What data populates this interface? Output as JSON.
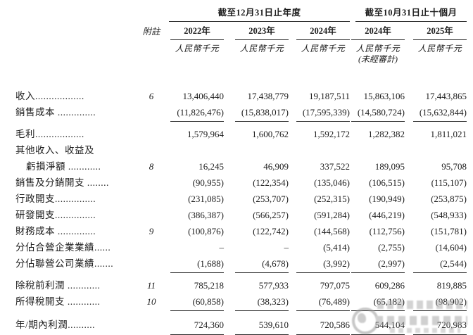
{
  "header": {
    "note_header": "附註",
    "group_annual": "截至12月31日止年度",
    "group_ten_months": "截至10月31日止十個月",
    "years": [
      "2022年",
      "2023年",
      "2024年",
      "2024年",
      "2025年"
    ],
    "unit": "人民幣千元",
    "unaudited": "(未經審計)"
  },
  "rows": [
    {
      "label": "收入..................",
      "note": "6",
      "v": [
        "13,406,440",
        "17,438,779",
        "19,187,511",
        "15,863,106",
        "17,443,865"
      ]
    },
    {
      "label": "銷售成本 ..............",
      "note": "",
      "v": [
        "(11,826,476)",
        "(15,838,017)",
        "(17,595,339)",
        "(14,580,724)",
        "(15,632,844)"
      ]
    },
    {
      "label": "毛利..................",
      "note": "",
      "v": [
        "1,579,964",
        "1,600,762",
        "1,592,172",
        "1,282,382",
        "1,811,021"
      ]
    },
    {
      "label": "其他收入、收益及",
      "note": "",
      "v": [
        "",
        "",
        "",
        "",
        ""
      ]
    },
    {
      "label": "虧損淨額 ............",
      "note": "8",
      "v": [
        "16,245",
        "46,909",
        "337,522",
        "189,095",
        "95,708"
      ]
    },
    {
      "label": "銷售及分銷開支 ........",
      "note": "",
      "v": [
        "(90,955)",
        "(122,354)",
        "(135,046)",
        "(106,515)",
        "(115,107)"
      ]
    },
    {
      "label": "行政開支...............",
      "note": "",
      "v": [
        "(231,085)",
        "(253,707)",
        "(252,315)",
        "(190,949)",
        "(253,875)"
      ]
    },
    {
      "label": "研發開支...............",
      "note": "",
      "v": [
        "(386,387)",
        "(566,257)",
        "(591,284)",
        "(446,219)",
        "(548,933)"
      ]
    },
    {
      "label": "財務成本 ..............",
      "note": "9",
      "v": [
        "(100,876)",
        "(122,742)",
        "(144,568)",
        "(112,756)",
        "(151,781)"
      ]
    },
    {
      "label": "分佔合營企業業績......",
      "note": "",
      "v": [
        "–",
        "–",
        "(5,414)",
        "(2,755)",
        "(14,604)"
      ]
    },
    {
      "label": "分佔聯營公司業績.......",
      "note": "",
      "v": [
        "(1,688)",
        "(4,678)",
        "(3,992)",
        "(2,997)",
        "(2,544)"
      ]
    },
    {
      "label": "除稅前利潤 ............",
      "note": "11",
      "v": [
        "785,218",
        "577,933",
        "797,075",
        "609,286",
        "819,885"
      ]
    },
    {
      "label": "所得稅開支 ............",
      "note": "10",
      "v": [
        "(60,858)",
        "(38,323)",
        "(76,489)",
        "(65,182)",
        "(98,902)"
      ]
    },
    {
      "label": "年/期內利潤..........",
      "note": "",
      "v": [
        "724,360",
        "539,610",
        "720,586",
        "544,104",
        "720,983"
      ]
    }
  ]
}
